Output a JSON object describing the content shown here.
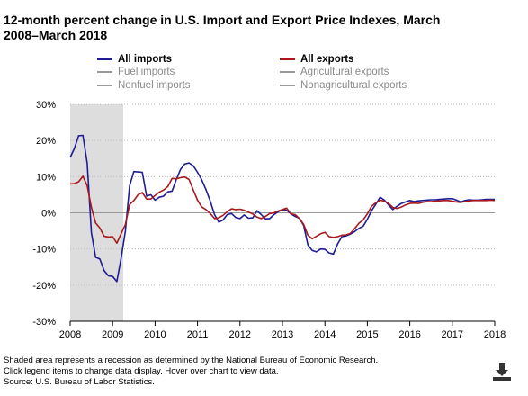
{
  "title": "12-month percent change in U.S. Import and Export Price Indexes, March 2008–March 2018",
  "legend": {
    "items": [
      {
        "label": "All imports",
        "color": "#1f1c96",
        "active": true
      },
      {
        "label": "All exports",
        "color": "#a8181d",
        "active": true
      },
      {
        "label": "Fuel imports",
        "color": "#999999",
        "active": false
      },
      {
        "label": "Agricultural exports",
        "color": "#999999",
        "active": false
      },
      {
        "label": "Nonfuel imports",
        "color": "#999999",
        "active": false
      },
      {
        "label": "Nonagricultural exports",
        "color": "#999999",
        "active": false
      }
    ]
  },
  "notes": {
    "line1": "Shaded area represents a recession as determined by the National Bureau of Economic Research.",
    "line2": "Click legend items to change data display. Hover over chart to view data.",
    "line3": "Source: U.S. Bureau of Labor Statistics."
  },
  "icons": {
    "download": "download-icon"
  },
  "chart_data": {
    "type": "line",
    "x_unit": "year",
    "xlim": [
      2008.0,
      2018.0
    ],
    "ylim": [
      -30,
      30
    ],
    "y_ticks": [
      30,
      20,
      10,
      0,
      -10,
      -20,
      -30
    ],
    "y_tick_labels": [
      "30%",
      "20%",
      "10%",
      "0%",
      "-10%",
      "-20%",
      "-30%"
    ],
    "x_ticks": [
      2008,
      2009,
      2010,
      2011,
      2012,
      2013,
      2014,
      2015,
      2016,
      2017,
      2018
    ],
    "x_tick_labels": [
      "2008",
      "2009",
      "2010",
      "2011",
      "2012",
      "2013",
      "2014",
      "2015",
      "2016",
      "2017",
      "2018"
    ],
    "gridlines": "horizontal dotted",
    "recession": {
      "start": 2008.0,
      "end": 2009.25,
      "color": "#dddddd"
    },
    "series": [
      {
        "name": "All imports",
        "color": "#1f1c96",
        "x": [
          2008.0,
          2008.1,
          2008.2,
          2008.3,
          2008.4,
          2008.5,
          2008.6,
          2008.7,
          2008.8,
          2008.9,
          2009.0,
          2009.1,
          2009.2,
          2009.3,
          2009.4,
          2009.5,
          2009.6,
          2009.7,
          2009.8,
          2009.9,
          2010.0,
          2010.1,
          2010.2,
          2010.3,
          2010.4,
          2010.5,
          2010.6,
          2010.7,
          2010.8,
          2010.9,
          2011.0,
          2011.1,
          2011.2,
          2011.3,
          2011.4,
          2011.5,
          2011.6,
          2011.7,
          2011.8,
          2011.9,
          2012.0,
          2012.1,
          2012.2,
          2012.3,
          2012.4,
          2012.5,
          2012.6,
          2012.7,
          2012.8,
          2012.9,
          2013.0,
          2013.1,
          2013.2,
          2013.3,
          2013.4,
          2013.5,
          2013.6,
          2013.7,
          2013.8,
          2013.9,
          2014.0,
          2014.1,
          2014.2,
          2014.3,
          2014.4,
          2014.5,
          2014.6,
          2014.7,
          2014.8,
          2014.9,
          2015.0,
          2015.1,
          2015.2,
          2015.3,
          2015.4,
          2015.5,
          2015.6,
          2015.7,
          2015.8,
          2015.9,
          2016.0,
          2016.1,
          2016.2,
          2016.3,
          2016.4,
          2016.5,
          2016.6,
          2016.7,
          2016.8,
          2016.9,
          2017.0,
          2017.1,
          2017.2,
          2017.3,
          2017.4,
          2017.5,
          2017.6,
          2017.7,
          2017.8,
          2017.9,
          2018.0
        ],
        "values": [
          15.3,
          17.8,
          21.3,
          21.4,
          13.8,
          -5.5,
          -12.3,
          -12.8,
          -16.0,
          -17.4,
          -17.6,
          -19.0,
          -12.6,
          -5.0,
          7.5,
          11.4,
          11.3,
          11.2,
          4.6,
          5.0,
          3.5,
          4.3,
          4.6,
          5.8,
          6.0,
          9.2,
          12.0,
          13.5,
          13.8,
          13.0,
          11.2,
          9.1,
          6.4,
          3.2,
          -0.5,
          -2.6,
          -2.0,
          -0.5,
          -0.2,
          -1.3,
          -1.6,
          -0.6,
          -1.5,
          -1.4,
          0.6,
          -0.5,
          -1.7,
          -1.6,
          -0.5,
          0.3,
          0.9,
          0.7,
          -0.3,
          -1.0,
          -1.5,
          -3.5,
          -8.9,
          -10.4,
          -10.8,
          -10.0,
          -10.1,
          -11.1,
          -11.4,
          -8.6,
          -6.6,
          -6.4,
          -5.9,
          -5.2,
          -4.3,
          -3.7,
          -1.8,
          0.6,
          2.4,
          4.3,
          3.5,
          2.2,
          0.9,
          1.8,
          2.6,
          3.0,
          3.4,
          3.1,
          3.3,
          3.4,
          3.5,
          3.6,
          3.6,
          3.7,
          3.8,
          3.9,
          3.9,
          3.5,
          3.0,
          3.4,
          3.6,
          3.5,
          3.5,
          3.6,
          3.7,
          3.7,
          3.7
        ]
      },
      {
        "name": "All exports",
        "color": "#a8181d",
        "x": [
          2008.0,
          2008.1,
          2008.2,
          2008.3,
          2008.4,
          2008.5,
          2008.6,
          2008.7,
          2008.8,
          2008.9,
          2009.0,
          2009.1,
          2009.2,
          2009.3,
          2009.4,
          2009.5,
          2009.6,
          2009.7,
          2009.8,
          2009.9,
          2010.0,
          2010.1,
          2010.2,
          2010.3,
          2010.4,
          2010.5,
          2010.6,
          2010.7,
          2010.8,
          2010.9,
          2011.0,
          2011.1,
          2011.2,
          2011.3,
          2011.4,
          2011.5,
          2011.6,
          2011.7,
          2011.8,
          2011.9,
          2012.0,
          2012.1,
          2012.2,
          2012.3,
          2012.4,
          2012.5,
          2012.6,
          2012.7,
          2012.8,
          2012.9,
          2013.0,
          2013.1,
          2013.2,
          2013.3,
          2013.4,
          2013.5,
          2013.6,
          2013.7,
          2013.8,
          2013.9,
          2014.0,
          2014.1,
          2014.2,
          2014.3,
          2014.4,
          2014.5,
          2014.6,
          2014.7,
          2014.8,
          2014.9,
          2015.0,
          2015.1,
          2015.2,
          2015.3,
          2015.4,
          2015.5,
          2015.6,
          2015.7,
          2015.8,
          2015.9,
          2016.0,
          2016.1,
          2016.2,
          2016.3,
          2016.4,
          2016.5,
          2016.6,
          2016.7,
          2016.8,
          2016.9,
          2017.0,
          2017.1,
          2017.2,
          2017.3,
          2017.4,
          2017.5,
          2017.6,
          2017.7,
          2017.8,
          2017.9,
          2018.0
        ],
        "values": [
          8.0,
          8.1,
          8.6,
          10.1,
          7.5,
          1.5,
          -2.8,
          -4.2,
          -6.5,
          -6.7,
          -6.6,
          -8.4,
          -5.8,
          -3.2,
          2.3,
          3.4,
          5.0,
          5.6,
          3.8,
          3.8,
          4.8,
          5.7,
          6.3,
          7.3,
          9.5,
          9.4,
          9.7,
          9.9,
          9.2,
          6.3,
          3.5,
          1.6,
          0.9,
          -0.2,
          -1.6,
          -1.4,
          -0.7,
          0.3,
          1.1,
          0.9,
          1.0,
          0.7,
          0.2,
          -0.3,
          -1.2,
          -1.6,
          -1.0,
          -0.2,
          0.0,
          0.5,
          0.9,
          1.3,
          -0.3,
          -0.5,
          -1.6,
          -3.2,
          -6.2,
          -7.2,
          -6.5,
          -5.8,
          -5.4,
          -6.6,
          -6.8,
          -6.6,
          -6.2,
          -6.1,
          -5.7,
          -4.4,
          -2.9,
          -2.0,
          -0.3,
          1.8,
          2.8,
          3.5,
          3.2,
          2.6,
          1.5,
          1.2,
          1.6,
          2.2,
          2.6,
          2.7,
          2.6,
          2.9,
          3.1,
          3.1,
          3.2,
          3.3,
          3.4,
          3.4,
          3.2,
          3.0,
          2.9,
          3.1,
          3.3,
          3.4,
          3.4,
          3.4,
          3.4,
          3.5,
          3.4
        ]
      }
    ]
  }
}
